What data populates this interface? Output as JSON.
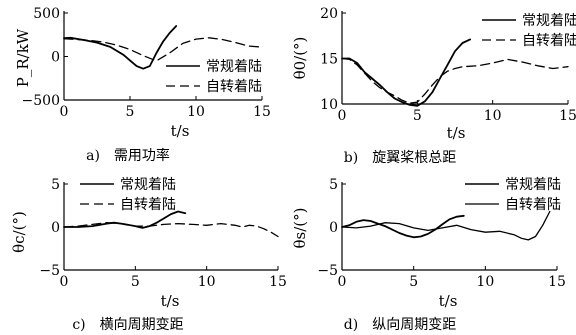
{
  "chart_data": [
    {
      "type": "line",
      "caption": "a)　需用功率",
      "xlabel": "t/s",
      "ylabel": "P_R/kW",
      "xlim": [
        0,
        15
      ],
      "ylim": [
        -500,
        500
      ],
      "xticks": [
        "0",
        "5",
        "10",
        "15"
      ],
      "yticks": [
        "500",
        "0",
        "−500"
      ],
      "ytick_values": [
        500,
        0,
        -500
      ],
      "legend_position": "lower-right",
      "series": [
        {
          "name": "常规着陆",
          "style": "solid",
          "x": [
            0,
            0.5,
            1.5,
            2.5,
            3.5,
            4.5,
            5.5,
            6,
            6.5,
            7,
            7.5,
            8,
            8.5
          ],
          "y": [
            210,
            215,
            190,
            160,
            110,
            20,
            -110,
            -140,
            -110,
            40,
            170,
            270,
            350
          ]
        },
        {
          "name": "自转着陆",
          "style": "dashed",
          "x": [
            0,
            1,
            2,
            3,
            4,
            5,
            6,
            7,
            8,
            9,
            10,
            11,
            12,
            13,
            14,
            14.8
          ],
          "y": [
            205,
            195,
            185,
            165,
            130,
            80,
            10,
            -50,
            40,
            150,
            200,
            215,
            195,
            160,
            120,
            110
          ]
        }
      ]
    },
    {
      "type": "line",
      "caption": "b)　旋翼桨根总距",
      "xlabel": "t/s",
      "ylabel": "θ0/(°)",
      "xlim": [
        0,
        15
      ],
      "ylim": [
        10,
        20
      ],
      "xticks": [
        "0",
        "5",
        "10",
        "15"
      ],
      "yticks": [
        "20",
        "15",
        "10"
      ],
      "ytick_values": [
        20,
        15,
        10
      ],
      "legend_position": "top-right",
      "series": [
        {
          "name": "常规着陆",
          "style": "solid",
          "x": [
            0,
            0.5,
            1,
            1.5,
            2,
            2.5,
            3,
            3.5,
            4,
            4.5,
            5,
            5.5,
            6,
            6.5,
            7,
            7.5,
            8,
            8.5
          ],
          "y": [
            15,
            15,
            14.5,
            13.5,
            12.8,
            12.1,
            11.3,
            10.6,
            10.2,
            9.9,
            9.8,
            10.3,
            11.3,
            12.8,
            14.3,
            15.8,
            16.7,
            17.1
          ]
        },
        {
          "name": "自转着陆",
          "style": "dashed",
          "x": [
            0,
            0.5,
            1,
            1.5,
            2,
            2.5,
            3,
            3.5,
            4,
            4.5,
            5,
            5.5,
            6,
            6.5,
            7,
            7.5,
            8,
            9,
            10,
            11,
            12,
            13,
            14,
            15
          ],
          "y": [
            15,
            14.9,
            14.3,
            13.4,
            12.5,
            11.8,
            11.3,
            10.9,
            10.4,
            10.1,
            10.2,
            11.1,
            12.1,
            13.0,
            13.6,
            13.9,
            14.1,
            14.2,
            14.5,
            14.9,
            14.6,
            14.2,
            13.9,
            14.1
          ]
        }
      ]
    },
    {
      "type": "line",
      "caption": "c)　横向周期变距",
      "xlabel": "t/s",
      "ylabel": "θc/(°)",
      "xlim": [
        0,
        15
      ],
      "ylim": [
        -5,
        5
      ],
      "xticks": [
        "0",
        "5",
        "10",
        "15"
      ],
      "yticks": [
        "5",
        "0",
        "−5"
      ],
      "ytick_values": [
        5,
        0,
        -5
      ],
      "legend_position": "top-left",
      "series": [
        {
          "name": "常规着陆",
          "style": "solid",
          "x": [
            0,
            1,
            2,
            3,
            3.5,
            4,
            5,
            5.5,
            6,
            6.5,
            7,
            7.5,
            8,
            8.5
          ],
          "y": [
            0,
            0,
            0.1,
            0.4,
            0.5,
            0.4,
            0.1,
            -0.1,
            0.1,
            0.5,
            1.0,
            1.5,
            1.8,
            1.6
          ]
        },
        {
          "name": "自转着陆",
          "style": "dashed",
          "x": [
            0,
            1,
            2,
            3,
            4,
            5,
            6,
            7,
            8,
            9,
            10,
            11,
            12,
            12.5,
            13,
            13.5,
            14,
            14.5,
            15
          ],
          "y": [
            0,
            0.1,
            0.3,
            0.5,
            0.4,
            0.1,
            0.1,
            0.3,
            0.4,
            0.3,
            0.2,
            0.4,
            0.2,
            0,
            0.2,
            0.1,
            -0.2,
            -0.6,
            -1.1
          ]
        }
      ]
    },
    {
      "type": "line",
      "caption": "d)　纵向周期变距",
      "xlabel": "t/s",
      "ylabel": "θs/(°)",
      "xlim": [
        0,
        15
      ],
      "ylim": [
        -5,
        5
      ],
      "xticks": [
        "0",
        "5",
        "10",
        "15"
      ],
      "yticks": [
        "5",
        "0",
        "−5"
      ],
      "ytick_values": [
        5,
        0,
        -5
      ],
      "legend_position": "top-right",
      "series": [
        {
          "name": "常规着陆",
          "style": "solid",
          "x": [
            0,
            0.5,
            1,
            1.5,
            2,
            2.5,
            3,
            3.5,
            4,
            4.5,
            5,
            5.5,
            6,
            6.5,
            7,
            7.5,
            8,
            8.5
          ],
          "y": [
            0,
            0.2,
            0.6,
            0.8,
            0.7,
            0.4,
            0.1,
            -0.3,
            -0.7,
            -1.0,
            -1.2,
            -1.1,
            -0.8,
            -0.3,
            0.3,
            0.9,
            1.2,
            1.3
          ]
        },
        {
          "name": "自转着陆",
          "style": "solid",
          "x": [
            0,
            1,
            2,
            3,
            4,
            5,
            6,
            7,
            8,
            9,
            10,
            11,
            12,
            12.5,
            13,
            13.5,
            14,
            14.5
          ],
          "y": [
            0,
            -0.1,
            0.1,
            0.5,
            0.4,
            -0.1,
            -0.4,
            -0.1,
            0.2,
            -0.3,
            -0.6,
            -0.5,
            -0.9,
            -1.3,
            -1.5,
            -1.1,
            0.2,
            1.8
          ]
        }
      ]
    }
  ]
}
